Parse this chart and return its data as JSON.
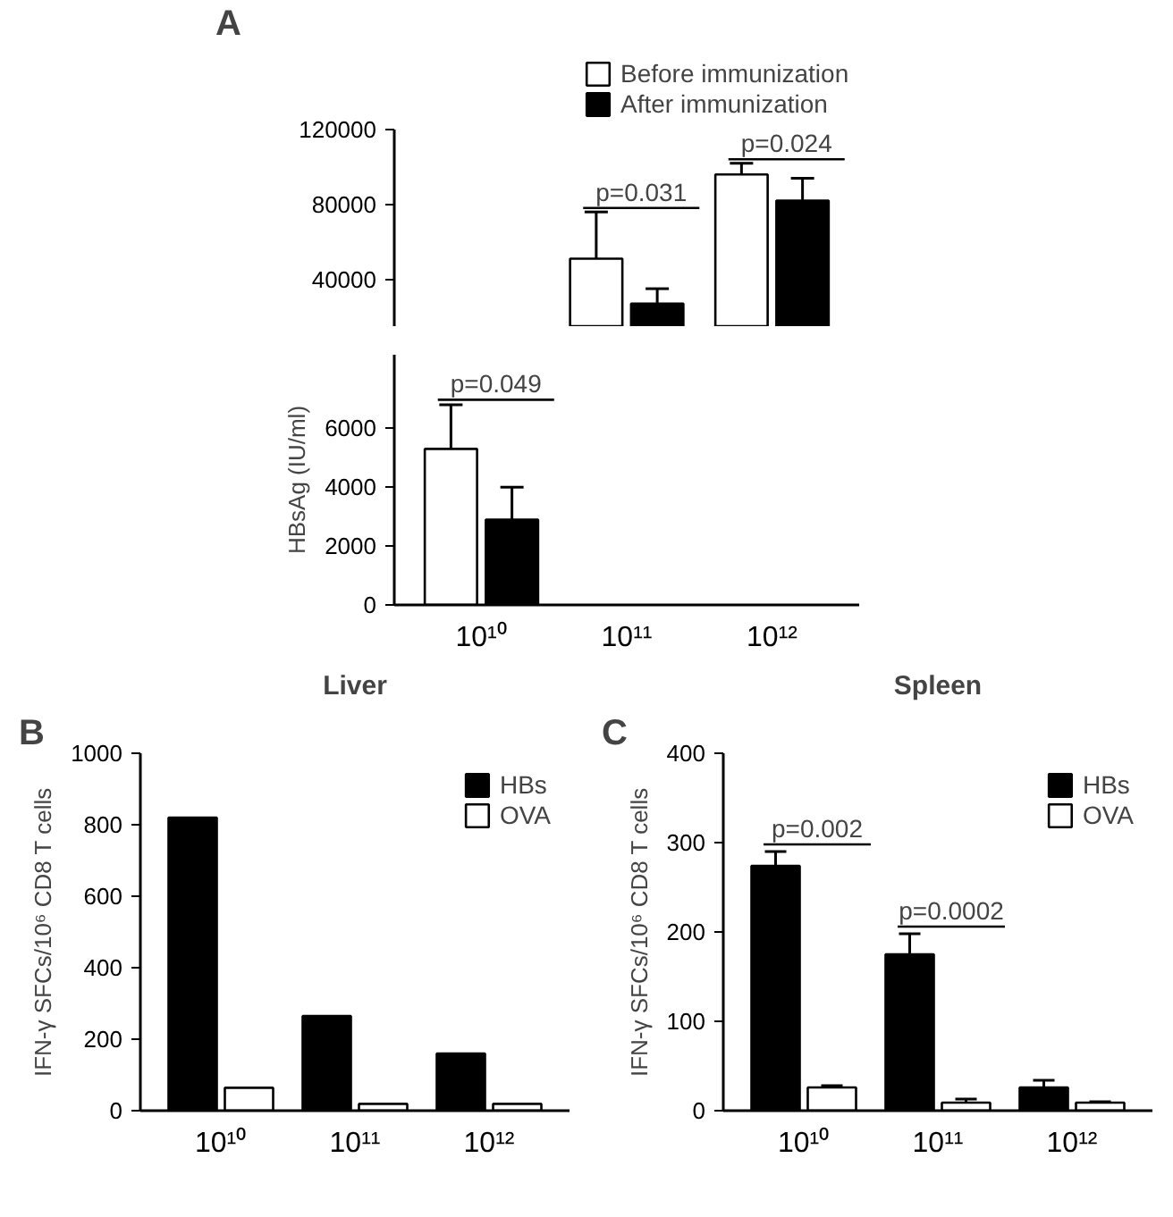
{
  "chart_data": [
    {
      "type": "bar",
      "categories": [
        "10¹⁰",
        "10¹¹",
        "10¹²"
      ],
      "tick_labels": "y",
      "grid": false,
      "legend": "top",
      "ylim": [
        15000,
        120000
      ],
      "yticks": [
        40000,
        80000,
        120000
      ],
      "series": [
        {
          "name": "Before immunization",
          "color": "#ffffff",
          "values": [
            null,
            51000,
            96000
          ],
          "errors": [
            null,
            25000,
            6000
          ]
        },
        {
          "name": "After immunization",
          "color": "#000000",
          "values": [
            null,
            27000,
            82000
          ],
          "errors": [
            null,
            8000,
            12000
          ]
        }
      ],
      "annotations": [
        "A",
        "p=0.031",
        "p=0.024"
      ]
    },
    {
      "type": "bar",
      "categories": [
        "10¹⁰",
        "10¹¹",
        "10¹²"
      ],
      "ylabel": "HBsAg (IU/ml)",
      "grid": false,
      "ylim": [
        0,
        8500
      ],
      "yticks": [
        0,
        2000,
        4000,
        6000
      ],
      "series": [
        {
          "color": "#ffffff",
          "values": [
            5300,
            null,
            null
          ],
          "errors": [
            1500,
            null,
            null
          ]
        },
        {
          "color": "#000000",
          "values": [
            2900,
            null,
            null
          ],
          "errors": [
            1100,
            null,
            null
          ]
        }
      ],
      "annotations": [
        "p=0.049"
      ]
    },
    {
      "type": "bar",
      "title": "Liver",
      "categories": [
        "10¹⁰",
        "10¹¹",
        "10¹²"
      ],
      "ylabel": "IFN-γ SFCs/10⁶ CD8 T cells",
      "grid": false,
      "legend": "top right",
      "ylim": [
        0,
        1000
      ],
      "yticks": [
        0,
        200,
        400,
        600,
        800,
        1000
      ],
      "series": [
        {
          "name": "HBs",
          "color": "#000000",
          "values": [
            820,
            265,
            160
          ]
        },
        {
          "name": "OVA",
          "color": "#ffffff",
          "values": [
            64,
            19,
            19
          ]
        }
      ],
      "annotations": [
        "B"
      ]
    },
    {
      "type": "bar",
      "title": "Spleen",
      "categories": [
        "10¹⁰",
        "10¹¹",
        "10¹²"
      ],
      "ylabel": "IFN-γ SFCs/10⁶ CD8 T cells",
      "grid": false,
      "legend": "top right",
      "ylim": [
        0,
        400
      ],
      "yticks": [
        0,
        100,
        200,
        300,
        400
      ],
      "series": [
        {
          "name": "HBs",
          "color": "#000000",
          "values": [
            274,
            175,
            26
          ],
          "errors": [
            16,
            23,
            8
          ]
        },
        {
          "name": "OVA",
          "color": "#ffffff",
          "values": [
            26,
            9,
            9
          ],
          "errors": [
            2,
            4,
            1
          ]
        }
      ],
      "annotations": [
        "C",
        "p=0.002",
        "p=0.0002"
      ]
    }
  ]
}
